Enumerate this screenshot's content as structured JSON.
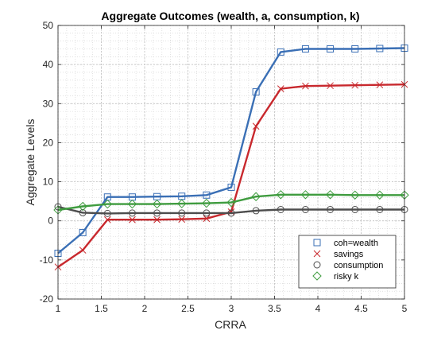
{
  "chart_data": {
    "type": "line",
    "title": "Aggregate Outcomes (wealth, a, consumption, k)",
    "xlabel": "CRRA",
    "ylabel": "Aggregate Levels",
    "xlim": [
      1,
      5
    ],
    "ylim": [
      -20,
      50
    ],
    "xticks": [
      1,
      1.5,
      2,
      2.5,
      3,
      3.5,
      4,
      4.5,
      5
    ],
    "xtick_labels": [
      "1",
      "1.5",
      "2",
      "2.5",
      "3",
      "3.5",
      "4",
      "4.5",
      "5"
    ],
    "yticks": [
      -20,
      -10,
      0,
      10,
      20,
      30,
      40,
      50
    ],
    "ytick_labels": [
      "-20",
      "-10",
      "0",
      "10",
      "20",
      "30",
      "40",
      "50"
    ],
    "grid": true,
    "minor_grid": true,
    "legend_position": "bottom-right",
    "x": [
      1.0,
      1.2857,
      1.5714,
      1.8571,
      2.1429,
      2.4286,
      2.7143,
      3.0,
      3.2857,
      3.5714,
      3.8571,
      4.1429,
      4.4286,
      4.7143,
      5.0
    ],
    "series": [
      {
        "name": "coh=wealth",
        "color": "#3a6fb5",
        "marker": "square",
        "values": [
          -8.3,
          -3.0,
          6.1,
          6.1,
          6.2,
          6.3,
          6.6,
          8.6,
          33.0,
          43.2,
          44.0,
          44.0,
          44.0,
          44.1,
          44.2
        ]
      },
      {
        "name": "savings",
        "color": "#c8282d",
        "marker": "x",
        "values": [
          -11.8,
          -7.5,
          0.3,
          0.3,
          0.3,
          0.4,
          0.6,
          2.3,
          24.2,
          33.8,
          34.5,
          34.6,
          34.7,
          34.8,
          34.9
        ]
      },
      {
        "name": "consumption",
        "color": "#4d4d4d",
        "marker": "circle",
        "values": [
          3.6,
          2.1,
          1.9,
          2.0,
          2.0,
          2.0,
          2.0,
          2.0,
          2.6,
          2.9,
          2.9,
          2.9,
          2.9,
          2.9,
          2.9
        ]
      },
      {
        "name": "risky k",
        "color": "#3f9c3f",
        "marker": "diamond",
        "values": [
          2.8,
          3.7,
          4.3,
          4.3,
          4.3,
          4.4,
          4.5,
          4.7,
          6.2,
          6.7,
          6.7,
          6.7,
          6.6,
          6.6,
          6.6
        ]
      }
    ]
  }
}
